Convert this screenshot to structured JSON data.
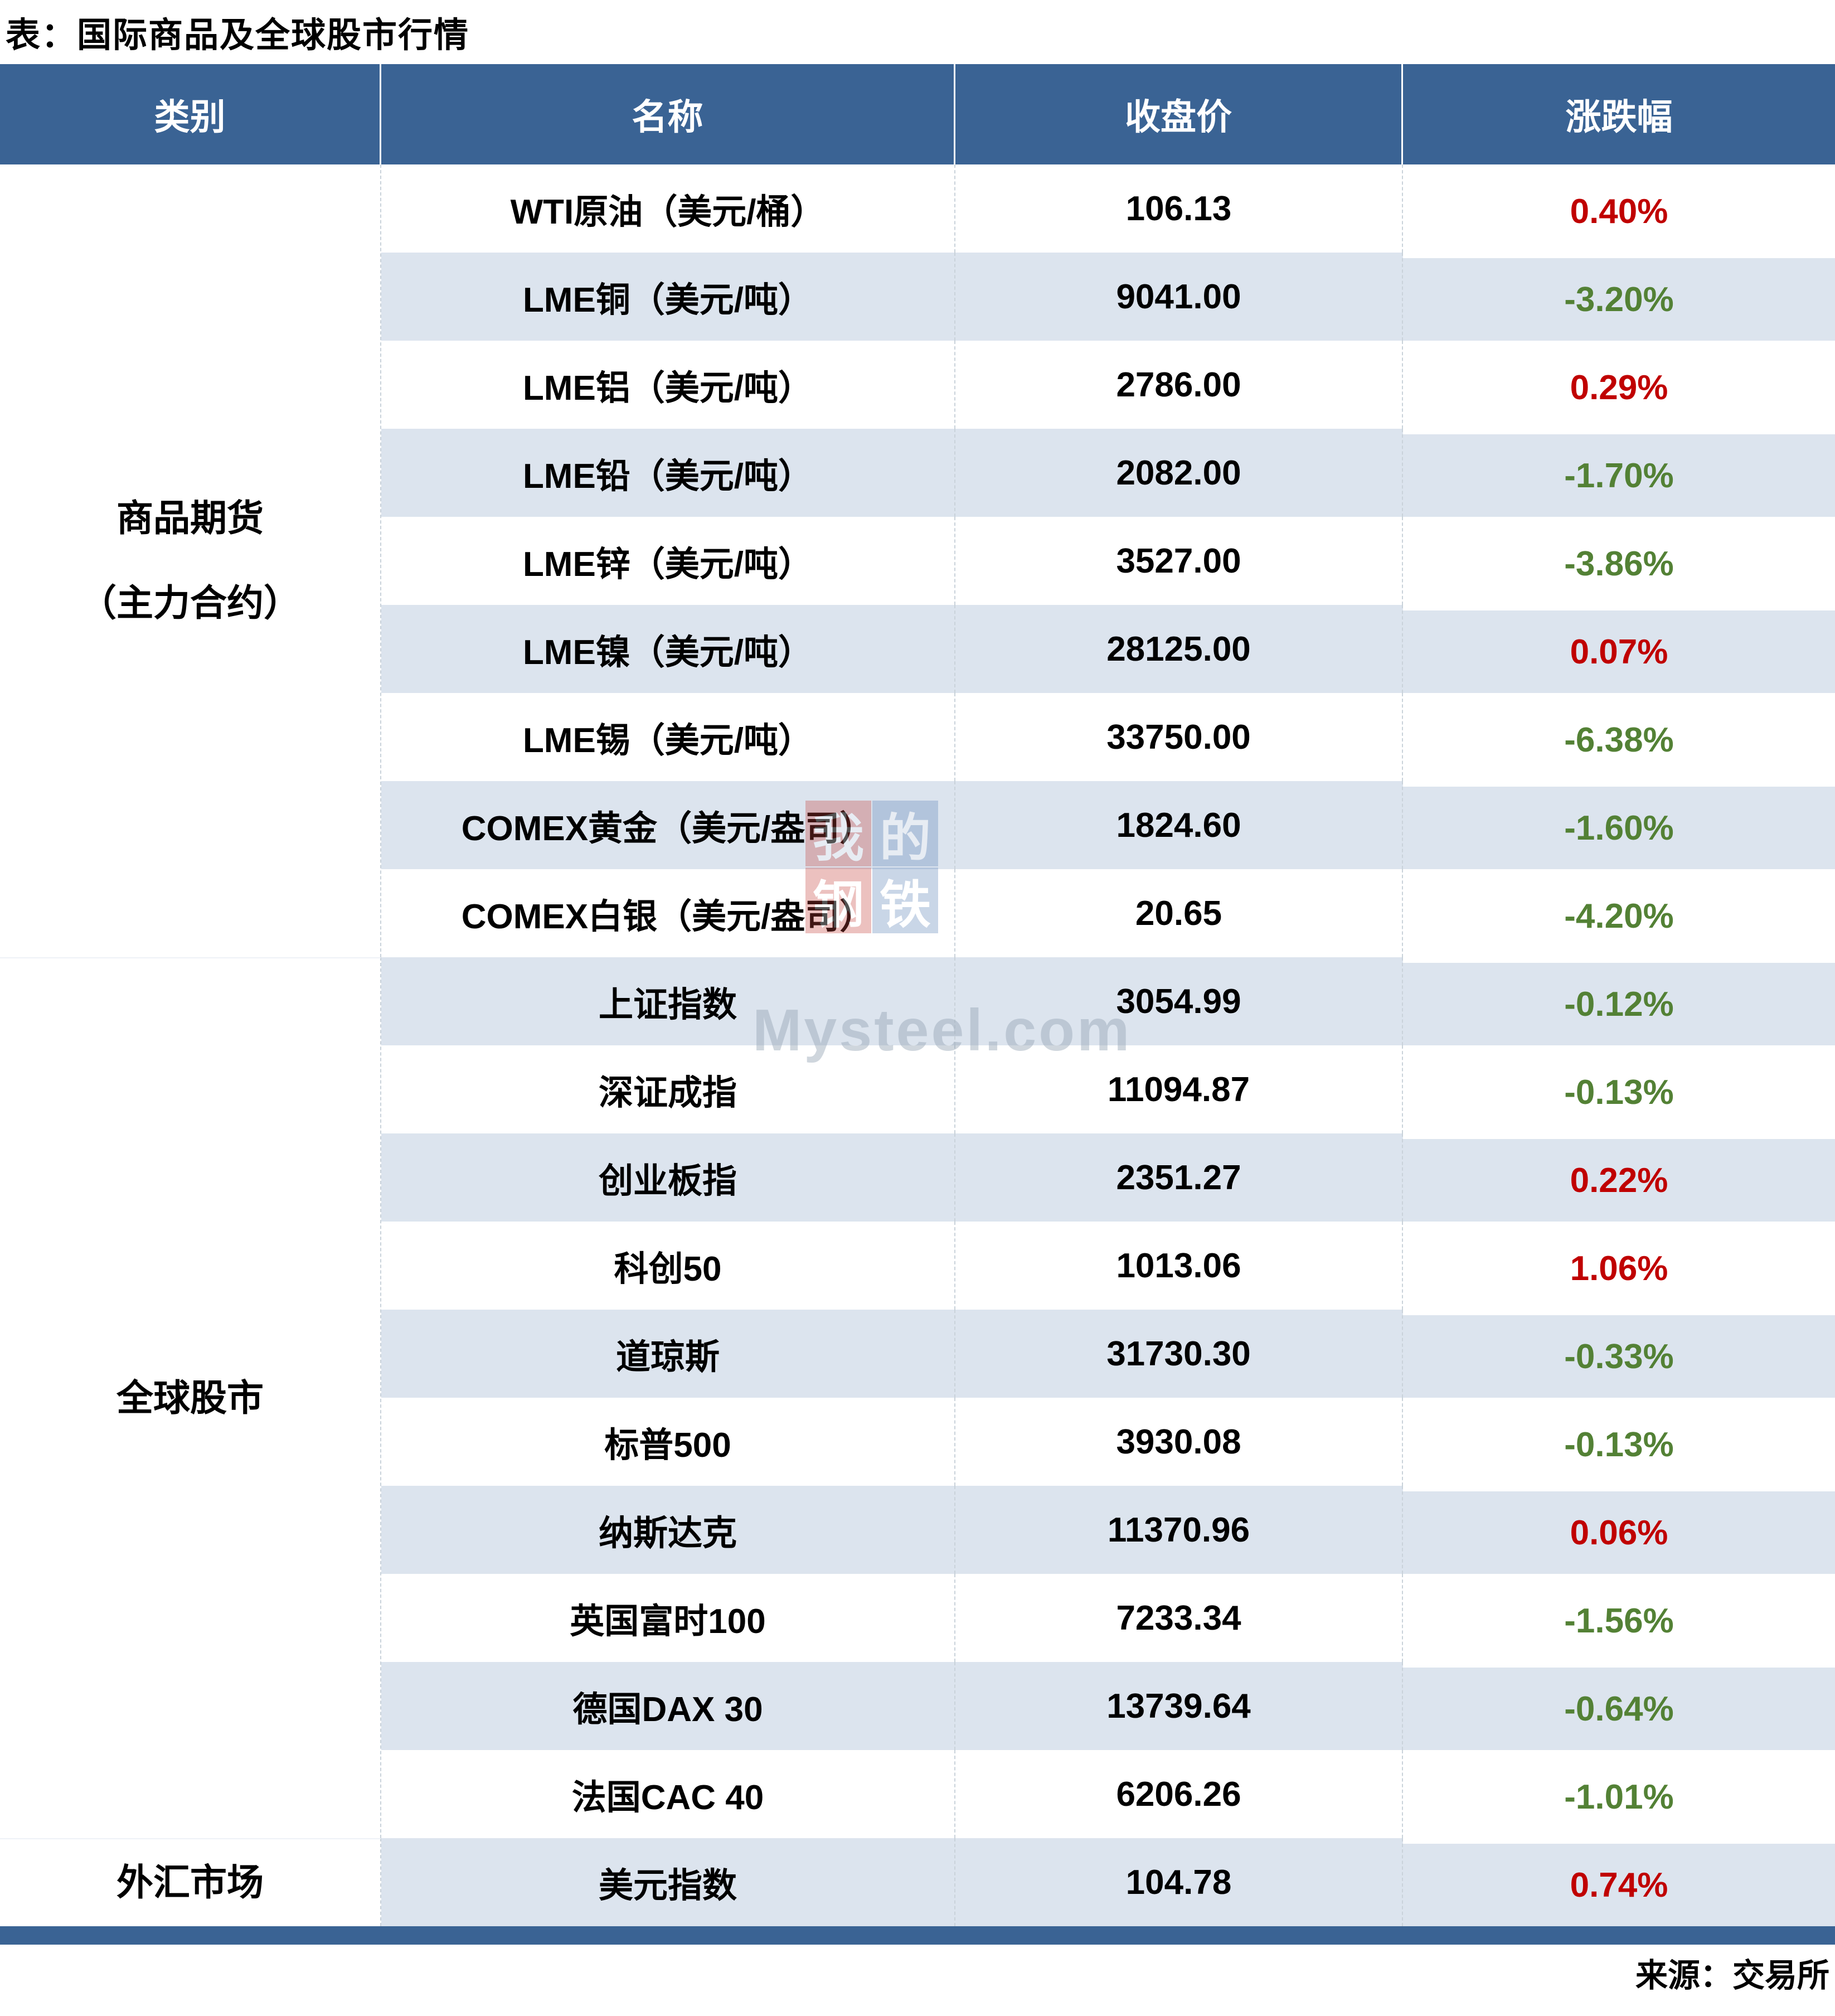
{
  "title": "表：国际商品及全球股市行情",
  "chart_data": {
    "type": "table",
    "title": "表：国际商品及全球股市行情",
    "columns": [
      "类别",
      "名称",
      "收盘价",
      "涨跌幅"
    ],
    "categories": [
      {
        "label_lines": [
          "商品期货",
          "（主力合约）"
        ],
        "row_span": 9
      },
      {
        "label_lines": [
          "全球股市"
        ],
        "row_span": 10
      },
      {
        "label_lines": [
          "外汇市场"
        ],
        "row_span": 1
      }
    ],
    "rows": [
      {
        "name": "WTI原油（美元/桶）",
        "close": "106.13",
        "change": "0.40%",
        "direction": "up"
      },
      {
        "name": "LME铜（美元/吨）",
        "close": "9041.00",
        "change": "-3.20%",
        "direction": "down"
      },
      {
        "name": "LME铝（美元/吨）",
        "close": "2786.00",
        "change": "0.29%",
        "direction": "up"
      },
      {
        "name": "LME铅（美元/吨）",
        "close": "2082.00",
        "change": "-1.70%",
        "direction": "down"
      },
      {
        "name": "LME锌（美元/吨）",
        "close": "3527.00",
        "change": "-3.86%",
        "direction": "down"
      },
      {
        "name": "LME镍（美元/吨）",
        "close": "28125.00",
        "change": "0.07%",
        "direction": "up"
      },
      {
        "name": "LME锡（美元/吨）",
        "close": "33750.00",
        "change": "-6.38%",
        "direction": "down"
      },
      {
        "name": "COMEX黄金（美元/盎司）",
        "close": "1824.60",
        "change": "-1.60%",
        "direction": "down"
      },
      {
        "name": "COMEX白银（美元/盎司）",
        "close": "20.65",
        "change": "-4.20%",
        "direction": "down"
      },
      {
        "name": "上证指数",
        "close": "3054.99",
        "change": "-0.12%",
        "direction": "down"
      },
      {
        "name": "深证成指",
        "close": "11094.87",
        "change": "-0.13%",
        "direction": "down"
      },
      {
        "name": "创业板指",
        "close": "2351.27",
        "change": "0.22%",
        "direction": "up"
      },
      {
        "name": "科创50",
        "close": "1013.06",
        "change": "1.06%",
        "direction": "up"
      },
      {
        "name": "道琼斯",
        "close": "31730.30",
        "change": "-0.33%",
        "direction": "down"
      },
      {
        "name": "标普500",
        "close": "3930.08",
        "change": "-0.13%",
        "direction": "down"
      },
      {
        "name": "纳斯达克",
        "close": "11370.96",
        "change": "0.06%",
        "direction": "up"
      },
      {
        "name": "英国富时100",
        "close": "7233.34",
        "change": "-1.56%",
        "direction": "down"
      },
      {
        "name": "德国DAX 30",
        "close": "13739.64",
        "change": "-0.64%",
        "direction": "down"
      },
      {
        "name": "法国CAC 40",
        "close": "6206.26",
        "change": "-1.01%",
        "direction": "down"
      },
      {
        "name": "美元指数",
        "close": "104.78",
        "change": "0.74%",
        "direction": "up"
      }
    ],
    "source": "来源：交易所"
  },
  "colors": {
    "header_bg": "#3a6394",
    "row_stripe": "#dce4ee",
    "up_red": "#c00000",
    "down_green": "#538135",
    "bottom_bar": "#3a6394",
    "divider_dash": "#c9d2da"
  },
  "watermark": {
    "grid_chars": [
      "我",
      "的",
      "钢",
      "铁"
    ],
    "grid_colors": [
      "red",
      "blue",
      "red",
      "blue"
    ],
    "text": "Mysteel.com"
  }
}
